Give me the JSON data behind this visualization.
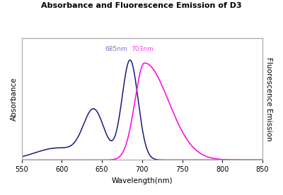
{
  "title": "Absorbance and Fluorescence Emission of D3",
  "xlabel": "Wavelength(nm)",
  "ylabel_left": "Absorbance",
  "ylabel_right": "Fluorescence Emission",
  "xmin": 550,
  "xmax": 850,
  "abs_peak": 685,
  "em_peak": 703,
  "abs_color": "#1a1a7a",
  "em_color": "#ff00dd",
  "annotation_abs": "685nm",
  "annotation_em": "703nm",
  "ann_color_abs": "#7777cc",
  "ann_color_em": "#ff44ee",
  "bg_color": "#ffffff",
  "plot_bg": "#ffffff",
  "title_fontsize": 8,
  "label_fontsize": 7.5,
  "tick_fontsize": 7,
  "ann_fontsize": 6.5,
  "xticks": [
    550,
    600,
    650,
    700,
    750,
    800,
    850
  ]
}
